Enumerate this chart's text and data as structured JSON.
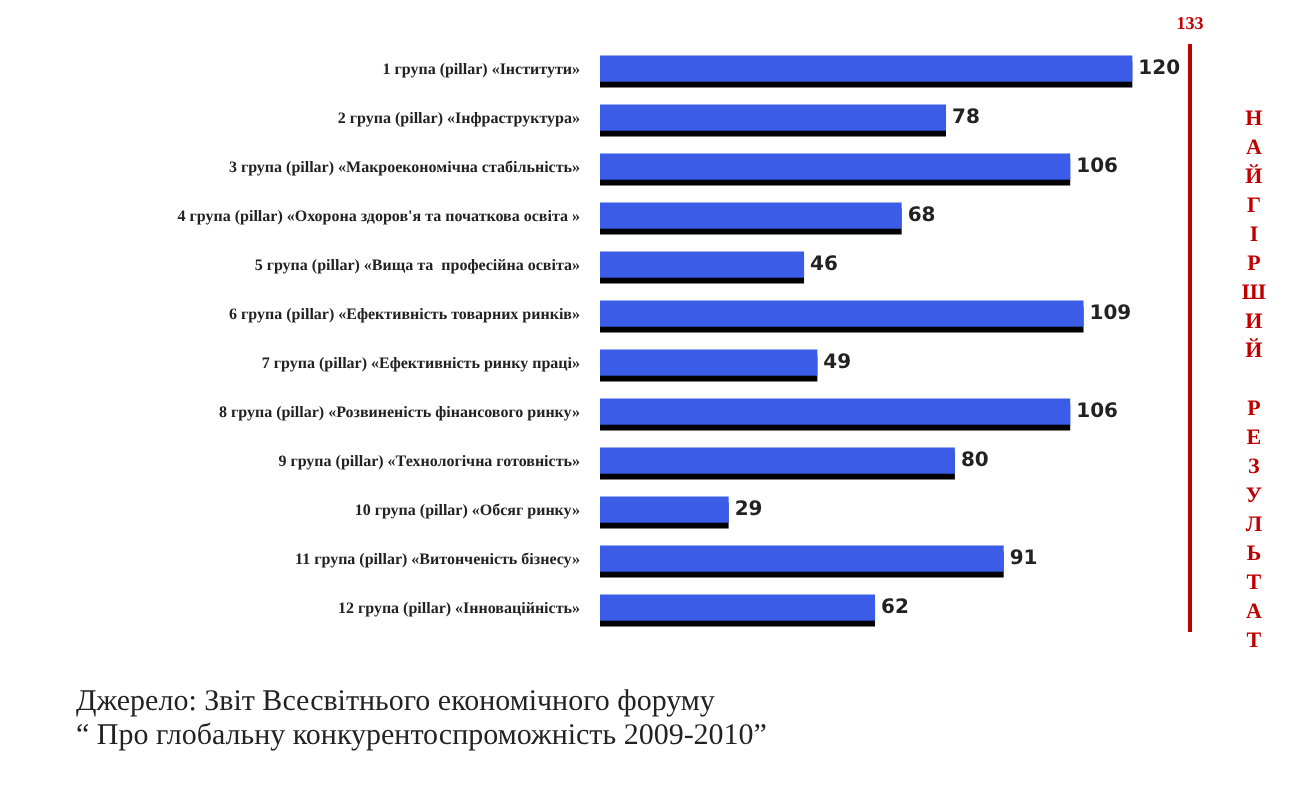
{
  "chart_data": {
    "type": "bar",
    "orientation": "horizontal",
    "categories": [
      "1 група (pillar) «Інститути»",
      "2 група (pillar) «Інфраструктура»",
      "3 група (pillar) «Макроекономічна стабільність»",
      "4 група (pillar) «Охорона здоров'я та початкова освіта »",
      "5 група (pillar) «Вища та  професійна освіта»",
      "6 група (pillar) «Ефективність товарних ринків»",
      "7 група (pillar) «Ефективність ринку праці»",
      "8 група (pillar) «Розвиненість фінансового ринку»",
      "9 група (pillar) «Технологічна готовність»",
      "10 група (pillar) «Обсяг ринку»",
      "11 група (pillar) «Витонченість бізнесу»",
      "12 група (pillar) «Інноваційність»"
    ],
    "values": [
      120,
      78,
      106,
      68,
      46,
      109,
      49,
      106,
      80,
      29,
      91,
      62
    ],
    "color": "#3a5ce6",
    "data_labels": true,
    "tick_labels": "y",
    "ref_lines": [
      {
        "axis": "x",
        "value": 133,
        "label": "133",
        "color": "#c00000"
      }
    ],
    "annotations": [
      "НАЙГІРШИЙ РЕЗУЛЬТАТ",
      "Джерело:  Звіт Всесвітнього економічного форуму",
      "“ Про глобальну конкурентоспроможність 2009-2010”"
    ]
  }
}
